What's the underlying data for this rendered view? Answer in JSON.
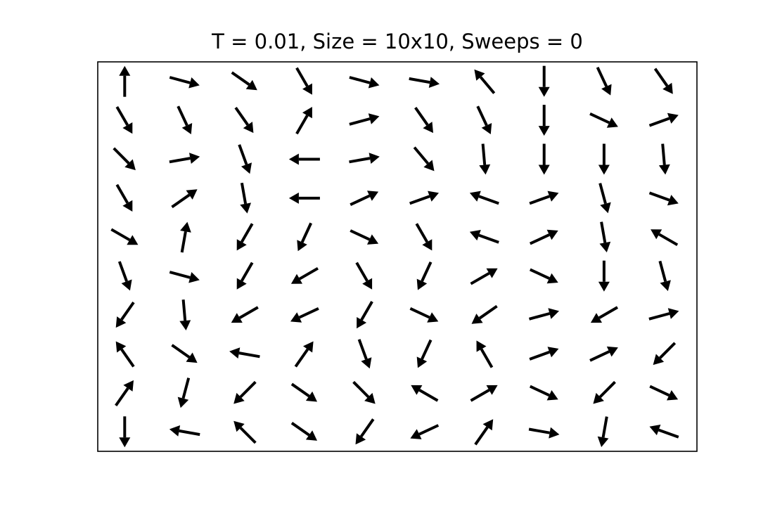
{
  "figure": {
    "title": "T = 0.01, Size = 10x10, Sweeps = 0"
  },
  "chart_data": {
    "type": "quiver",
    "title": "T = 0.01, Size = 10x10, Sweeps = 0",
    "xlabel": "",
    "ylabel": "",
    "grid": false,
    "axes_ticks": false,
    "rows": 10,
    "cols": 10,
    "arrow_color": "#000000",
    "angles_deg": [
      [
        90,
        -15,
        -35,
        -60,
        -15,
        -10,
        130,
        -90,
        -65,
        -55
      ],
      [
        -60,
        -65,
        -55,
        60,
        15,
        -55,
        -65,
        -90,
        -25,
        20
      ],
      [
        -45,
        10,
        -70,
        180,
        10,
        -50,
        -85,
        -90,
        -90,
        -85
      ],
      [
        -60,
        35,
        -80,
        180,
        25,
        20,
        160,
        20,
        -75,
        -20
      ],
      [
        -30,
        80,
        -120,
        -115,
        -25,
        -60,
        160,
        25,
        -80,
        150
      ],
      [
        -70,
        -15,
        -120,
        -150,
        -60,
        -115,
        30,
        -25,
        -90,
        -75
      ],
      [
        -125,
        -85,
        -150,
        -155,
        -120,
        -25,
        -145,
        15,
        -150,
        15
      ],
      [
        125,
        -35,
        170,
        55,
        -70,
        -115,
        120,
        20,
        25,
        225
      ],
      [
        55,
        -105,
        225,
        -35,
        -45,
        150,
        30,
        -25,
        -135,
        -25
      ],
      [
        -90,
        170,
        135,
        -35,
        -125,
        -155,
        55,
        -10,
        -100,
        160
      ]
    ]
  }
}
